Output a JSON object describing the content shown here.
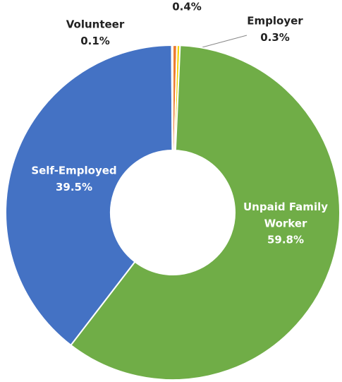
{
  "chart_data": {
    "type": "donut",
    "categories": [
      null,
      "Employer",
      "Unpaid Family Worker",
      "Self-Employed",
      "Volunteer"
    ],
    "values": [
      0.4,
      0.3,
      59.8,
      39.5,
      0.1
    ],
    "value_labels": [
      "0.4%",
      "0.3%",
      "59.8%",
      "39.5%",
      "0.1%"
    ],
    "colors": [
      "#ed7d31",
      "#f2d400",
      "#70ad47",
      "#4472c4",
      "#5ba3dc"
    ]
  }
}
